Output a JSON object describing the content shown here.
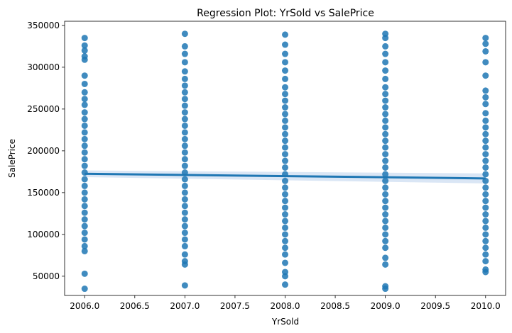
{
  "chart_data": {
    "type": "scatter",
    "title": "Regression Plot: YrSold vs SalePrice",
    "xlabel": "YrSold",
    "ylabel": "SalePrice",
    "xlim": [
      2005.8,
      2010.2
    ],
    "ylim": [
      27000,
      355000
    ],
    "x_ticks": [
      2006.0,
      2006.5,
      2007.0,
      2007.5,
      2008.0,
      2008.5,
      2009.0,
      2009.5,
      2010.0
    ],
    "x_tick_labels": [
      "2006.0",
      "2006.5",
      "2007.0",
      "2007.5",
      "2008.0",
      "2008.5",
      "2009.0",
      "2009.5",
      "2010.0"
    ],
    "y_ticks": [
      50000,
      100000,
      150000,
      200000,
      250000,
      300000,
      350000
    ],
    "y_tick_labels": [
      "50000",
      "100000",
      "150000",
      "200000",
      "250000",
      "300000",
      "350000"
    ],
    "grid": false,
    "point_color": "#1f77b4",
    "line_color": "#1f77b4",
    "band_color": "#aec7e8",
    "regression_line": {
      "x": [
        2006.0,
        2010.0
      ],
      "y": [
        172500,
        167000
      ]
    },
    "confidence_band": {
      "x": [
        2006.0,
        2010.0
      ],
      "upper": [
        176500,
        173000
      ],
      "lower": [
        168500,
        161000
      ]
    },
    "points": [
      {
        "x": 2006,
        "y": 335000
      },
      {
        "x": 2006,
        "y": 326000
      },
      {
        "x": 2006,
        "y": 320000
      },
      {
        "x": 2006,
        "y": 313000
      },
      {
        "x": 2006,
        "y": 309000
      },
      {
        "x": 2006,
        "y": 290000
      },
      {
        "x": 2006,
        "y": 280000
      },
      {
        "x": 2006,
        "y": 270000
      },
      {
        "x": 2006,
        "y": 262000
      },
      {
        "x": 2006,
        "y": 255000
      },
      {
        "x": 2006,
        "y": 246000
      },
      {
        "x": 2006,
        "y": 238000
      },
      {
        "x": 2006,
        "y": 230000
      },
      {
        "x": 2006,
        "y": 222000
      },
      {
        "x": 2006,
        "y": 214000
      },
      {
        "x": 2006,
        "y": 206000
      },
      {
        "x": 2006,
        "y": 198000
      },
      {
        "x": 2006,
        "y": 190000
      },
      {
        "x": 2006,
        "y": 182000
      },
      {
        "x": 2006,
        "y": 174000
      },
      {
        "x": 2006,
        "y": 166000
      },
      {
        "x": 2006,
        "y": 158000
      },
      {
        "x": 2006,
        "y": 150000
      },
      {
        "x": 2006,
        "y": 142000
      },
      {
        "x": 2006,
        "y": 134000
      },
      {
        "x": 2006,
        "y": 126000
      },
      {
        "x": 2006,
        "y": 118000
      },
      {
        "x": 2006,
        "y": 110000
      },
      {
        "x": 2006,
        "y": 102000
      },
      {
        "x": 2006,
        "y": 94000
      },
      {
        "x": 2006,
        "y": 86000
      },
      {
        "x": 2006,
        "y": 80000
      },
      {
        "x": 2006,
        "y": 53000
      },
      {
        "x": 2006,
        "y": 35000
      },
      {
        "x": 2007,
        "y": 340000
      },
      {
        "x": 2007,
        "y": 325000
      },
      {
        "x": 2007,
        "y": 316000
      },
      {
        "x": 2007,
        "y": 306000
      },
      {
        "x": 2007,
        "y": 295000
      },
      {
        "x": 2007,
        "y": 286000
      },
      {
        "x": 2007,
        "y": 278000
      },
      {
        "x": 2007,
        "y": 270000
      },
      {
        "x": 2007,
        "y": 262000
      },
      {
        "x": 2007,
        "y": 254000
      },
      {
        "x": 2007,
        "y": 246000
      },
      {
        "x": 2007,
        "y": 238000
      },
      {
        "x": 2007,
        "y": 230000
      },
      {
        "x": 2007,
        "y": 222000
      },
      {
        "x": 2007,
        "y": 214000
      },
      {
        "x": 2007,
        "y": 206000
      },
      {
        "x": 2007,
        "y": 198000
      },
      {
        "x": 2007,
        "y": 190000
      },
      {
        "x": 2007,
        "y": 182000
      },
      {
        "x": 2007,
        "y": 174000
      },
      {
        "x": 2007,
        "y": 166000
      },
      {
        "x": 2007,
        "y": 158000
      },
      {
        "x": 2007,
        "y": 150000
      },
      {
        "x": 2007,
        "y": 142000
      },
      {
        "x": 2007,
        "y": 134000
      },
      {
        "x": 2007,
        "y": 126000
      },
      {
        "x": 2007,
        "y": 118000
      },
      {
        "x": 2007,
        "y": 110000
      },
      {
        "x": 2007,
        "y": 102000
      },
      {
        "x": 2007,
        "y": 94000
      },
      {
        "x": 2007,
        "y": 86000
      },
      {
        "x": 2007,
        "y": 76000
      },
      {
        "x": 2007,
        "y": 68000
      },
      {
        "x": 2007,
        "y": 64000
      },
      {
        "x": 2007,
        "y": 39000
      },
      {
        "x": 2008,
        "y": 339000
      },
      {
        "x": 2008,
        "y": 327000
      },
      {
        "x": 2008,
        "y": 316000
      },
      {
        "x": 2008,
        "y": 306000
      },
      {
        "x": 2008,
        "y": 296000
      },
      {
        "x": 2008,
        "y": 286000
      },
      {
        "x": 2008,
        "y": 276000
      },
      {
        "x": 2008,
        "y": 268000
      },
      {
        "x": 2008,
        "y": 260000
      },
      {
        "x": 2008,
        "y": 252000
      },
      {
        "x": 2008,
        "y": 244000
      },
      {
        "x": 2008,
        "y": 236000
      },
      {
        "x": 2008,
        "y": 228000
      },
      {
        "x": 2008,
        "y": 220000
      },
      {
        "x": 2008,
        "y": 212000
      },
      {
        "x": 2008,
        "y": 204000
      },
      {
        "x": 2008,
        "y": 196000
      },
      {
        "x": 2008,
        "y": 188000
      },
      {
        "x": 2008,
        "y": 180000
      },
      {
        "x": 2008,
        "y": 172000
      },
      {
        "x": 2008,
        "y": 164000
      },
      {
        "x": 2008,
        "y": 156000
      },
      {
        "x": 2008,
        "y": 148000
      },
      {
        "x": 2008,
        "y": 140000
      },
      {
        "x": 2008,
        "y": 132000
      },
      {
        "x": 2008,
        "y": 124000
      },
      {
        "x": 2008,
        "y": 116000
      },
      {
        "x": 2008,
        "y": 108000
      },
      {
        "x": 2008,
        "y": 100000
      },
      {
        "x": 2008,
        "y": 92000
      },
      {
        "x": 2008,
        "y": 84000
      },
      {
        "x": 2008,
        "y": 76000
      },
      {
        "x": 2008,
        "y": 66000
      },
      {
        "x": 2008,
        "y": 55000
      },
      {
        "x": 2008,
        "y": 50000
      },
      {
        "x": 2008,
        "y": 40000
      },
      {
        "x": 2009,
        "y": 340000
      },
      {
        "x": 2009,
        "y": 335000
      },
      {
        "x": 2009,
        "y": 325000
      },
      {
        "x": 2009,
        "y": 316000
      },
      {
        "x": 2009,
        "y": 306000
      },
      {
        "x": 2009,
        "y": 296000
      },
      {
        "x": 2009,
        "y": 286000
      },
      {
        "x": 2009,
        "y": 276000
      },
      {
        "x": 2009,
        "y": 268000
      },
      {
        "x": 2009,
        "y": 260000
      },
      {
        "x": 2009,
        "y": 252000
      },
      {
        "x": 2009,
        "y": 244000
      },
      {
        "x": 2009,
        "y": 236000
      },
      {
        "x": 2009,
        "y": 228000
      },
      {
        "x": 2009,
        "y": 220000
      },
      {
        "x": 2009,
        "y": 212000
      },
      {
        "x": 2009,
        "y": 204000
      },
      {
        "x": 2009,
        "y": 196000
      },
      {
        "x": 2009,
        "y": 188000
      },
      {
        "x": 2009,
        "y": 180000
      },
      {
        "x": 2009,
        "y": 172000
      },
      {
        "x": 2009,
        "y": 164000
      },
      {
        "x": 2009,
        "y": 156000
      },
      {
        "x": 2009,
        "y": 148000
      },
      {
        "x": 2009,
        "y": 140000
      },
      {
        "x": 2009,
        "y": 132000
      },
      {
        "x": 2009,
        "y": 124000
      },
      {
        "x": 2009,
        "y": 116000
      },
      {
        "x": 2009,
        "y": 108000
      },
      {
        "x": 2009,
        "y": 100000
      },
      {
        "x": 2009,
        "y": 92000
      },
      {
        "x": 2009,
        "y": 84000
      },
      {
        "x": 2009,
        "y": 72000
      },
      {
        "x": 2009,
        "y": 64000
      },
      {
        "x": 2009,
        "y": 38000
      },
      {
        "x": 2009,
        "y": 35000
      },
      {
        "x": 2010,
        "y": 335000
      },
      {
        "x": 2010,
        "y": 328000
      },
      {
        "x": 2010,
        "y": 319000
      },
      {
        "x": 2010,
        "y": 306000
      },
      {
        "x": 2010,
        "y": 290000
      },
      {
        "x": 2010,
        "y": 272000
      },
      {
        "x": 2010,
        "y": 264000
      },
      {
        "x": 2010,
        "y": 256000
      },
      {
        "x": 2010,
        "y": 245000
      },
      {
        "x": 2010,
        "y": 236000
      },
      {
        "x": 2010,
        "y": 228000
      },
      {
        "x": 2010,
        "y": 220000
      },
      {
        "x": 2010,
        "y": 212000
      },
      {
        "x": 2010,
        "y": 204000
      },
      {
        "x": 2010,
        "y": 196000
      },
      {
        "x": 2010,
        "y": 188000
      },
      {
        "x": 2010,
        "y": 180000
      },
      {
        "x": 2010,
        "y": 172000
      },
      {
        "x": 2010,
        "y": 164000
      },
      {
        "x": 2010,
        "y": 156000
      },
      {
        "x": 2010,
        "y": 148000
      },
      {
        "x": 2010,
        "y": 140000
      },
      {
        "x": 2010,
        "y": 132000
      },
      {
        "x": 2010,
        "y": 124000
      },
      {
        "x": 2010,
        "y": 116000
      },
      {
        "x": 2010,
        "y": 108000
      },
      {
        "x": 2010,
        "y": 100000
      },
      {
        "x": 2010,
        "y": 92000
      },
      {
        "x": 2010,
        "y": 84000
      },
      {
        "x": 2010,
        "y": 76000
      },
      {
        "x": 2010,
        "y": 68000
      },
      {
        "x": 2010,
        "y": 58000
      },
      {
        "x": 2010,
        "y": 55000
      }
    ]
  }
}
